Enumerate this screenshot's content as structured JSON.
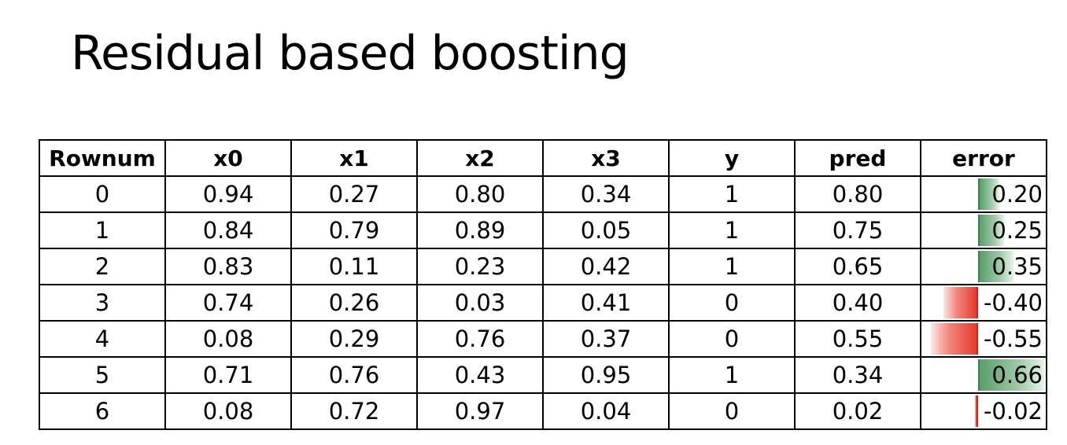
{
  "title": "Residual based boosting",
  "table": {
    "headers": [
      "Rownum",
      "x0",
      "x1",
      "x2",
      "x3",
      "y",
      "pred",
      "error"
    ],
    "rows": [
      [
        "0",
        "0.94",
        "0.27",
        "0.80",
        "0.34",
        "1",
        "0.80",
        "0.20"
      ],
      [
        "1",
        "0.84",
        "0.79",
        "0.89",
        "0.05",
        "1",
        "0.75",
        "0.25"
      ],
      [
        "2",
        "0.83",
        "0.11",
        "0.23",
        "0.42",
        "1",
        "0.65",
        "0.35"
      ],
      [
        "3",
        "0.74",
        "0.26",
        "0.03",
        "0.41",
        "0",
        "0.40",
        "-0.40"
      ],
      [
        "4",
        "0.08",
        "0.29",
        "0.76",
        "0.37",
        "0",
        "0.55",
        "-0.55"
      ],
      [
        "5",
        "0.71",
        "0.76",
        "0.43",
        "0.95",
        "1",
        "0.34",
        "0.66"
      ],
      [
        "6",
        "0.08",
        "0.72",
        "0.97",
        "0.04",
        "0",
        "0.02",
        "-0.02"
      ]
    ],
    "error_values": [
      0.2,
      0.25,
      0.35,
      -0.4,
      -0.55,
      0.66,
      -0.02
    ],
    "error_bar_colors": {
      "positive": "#5a9e6b",
      "negative": "#e53b2f"
    }
  }
}
